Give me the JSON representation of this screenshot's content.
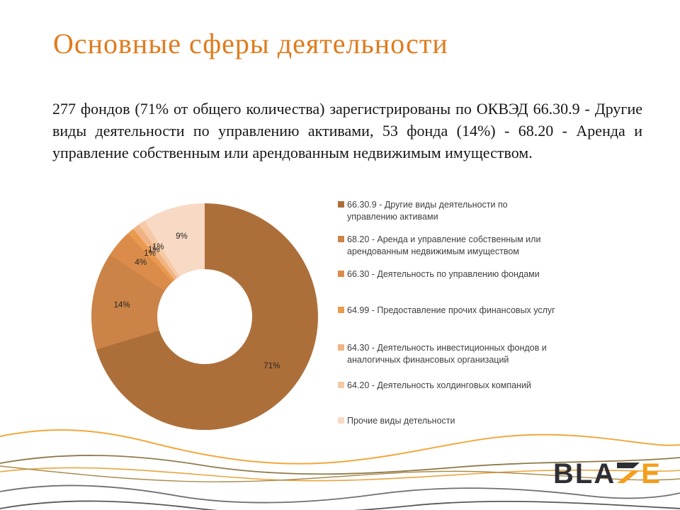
{
  "slide": {
    "title": "Основные сферы деятельности",
    "body_text": "277 фондов (71% от общего количества) зарегистрированы по ОКВЭД 66.30.9 - Другие виды деятельности по управлению активами, 53 фонда (14%) - 68.20 - Аренда и управление собственным или арендованным недвижимым имуществом."
  },
  "colors": {
    "title": "#E07B1C",
    "legend_text": "#404040",
    "label_text": "#262626",
    "logo_dark": "#2E2E35",
    "logo_orange": "#F59E1B"
  },
  "logo": {
    "full_name": "BLAZE",
    "dark_part": "BLA",
    "orange_part": "E"
  },
  "chart_data": {
    "type": "pie",
    "subtype": "donut",
    "title": "",
    "legend_position": "right",
    "labels_shown": "percent",
    "slices": [
      {
        "label": "66.30.9 - Другие виды деятельности по\nуправлению активами",
        "value": 71,
        "display": "71%",
        "color": "#AD6F3A"
      },
      {
        "label": "68.20 -  Аренда и управление собственным или\nарендованным недвижимым имуществом",
        "value": 14,
        "display": "14%",
        "color": "#CB8347"
      },
      {
        "label": "66.30 -  Деятельность по управлению фондами",
        "value": 4,
        "display": "4%",
        "color": "#DB8C4A"
      },
      {
        "label": "64.99 -  Предоставление прочих финансовых услуг",
        "value": 1,
        "display": "1%",
        "color": "#EA9A4F"
      },
      {
        "label": "64.30 -  Деятельность инвестиционных фондов и\nаналогичных финансовых организаций",
        "value": 1,
        "display": "1%",
        "color": "#F0B384"
      },
      {
        "label": "64.20 -  Деятельность холдинговых компаний",
        "value": 1,
        "display": "1%",
        "color": "#F5C9A5"
      },
      {
        "label": "Прочие виды детельности",
        "value": 9,
        "display": "9%",
        "color": "#F8D9C4"
      }
    ]
  }
}
